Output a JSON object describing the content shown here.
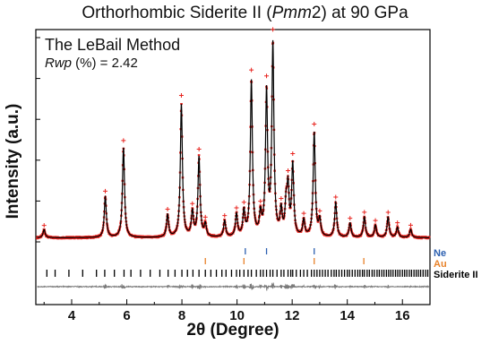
{
  "title_prefix": "Orthorhombic Siderite II (",
  "title_italic": "Pmm",
  "title_suffix": "2) at 90 GPa",
  "method_label": "The LeBail Method",
  "rwp_italic": "Rwp",
  "rwp_rest": " (%) = 2.42",
  "colors": {
    "observed": "#e8231e",
    "fit": "#000000",
    "difference": "#7a7a7a",
    "ne": "#2b5fb0",
    "au": "#e8822a",
    "siderite": "#000000"
  },
  "chart_data": {
    "type": "line",
    "xlabel": "2θ (Degree)",
    "ylabel": "Intensity (a.u.)",
    "xlim": [
      2.7,
      17.0
    ],
    "ylim": [
      0,
      100
    ],
    "xticks": [
      4,
      6,
      8,
      10,
      12,
      14,
      16
    ],
    "xtick_labels": [
      "4",
      "6",
      "8",
      "10",
      "12",
      "14",
      "16"
    ],
    "grid": false,
    "background_level": 2.0,
    "peaks": [
      {
        "x": 3.0,
        "height": 4.0
      },
      {
        "x": 5.22,
        "height": 20.0
      },
      {
        "x": 5.88,
        "height": 44.0
      },
      {
        "x": 7.48,
        "height": 11.0
      },
      {
        "x": 7.98,
        "height": 65.0
      },
      {
        "x": 8.38,
        "height": 12.0
      },
      {
        "x": 8.62,
        "height": 39.0
      },
      {
        "x": 8.85,
        "height": 6.0
      },
      {
        "x": 9.55,
        "height": 8.0
      },
      {
        "x": 9.98,
        "height": 11.0
      },
      {
        "x": 10.25,
        "height": 12.0
      },
      {
        "x": 10.52,
        "height": 76.0
      },
      {
        "x": 10.85,
        "height": 10.0
      },
      {
        "x": 11.07,
        "height": 70.0
      },
      {
        "x": 11.3,
        "height": 93.0
      },
      {
        "x": 11.6,
        "height": 12.0
      },
      {
        "x": 11.78,
        "height": 14.0
      },
      {
        "x": 11.85,
        "height": 22.0
      },
      {
        "x": 12.02,
        "height": 35.0
      },
      {
        "x": 12.42,
        "height": 8.0
      },
      {
        "x": 12.8,
        "height": 51.0
      },
      {
        "x": 13.0,
        "height": 8.0
      },
      {
        "x": 13.58,
        "height": 17.0
      },
      {
        "x": 14.1,
        "height": 7.0
      },
      {
        "x": 14.62,
        "height": 10.0
      },
      {
        "x": 15.02,
        "height": 6.0
      },
      {
        "x": 15.48,
        "height": 10.0
      },
      {
        "x": 15.82,
        "height": 5.0
      },
      {
        "x": 16.3,
        "height": 4.0
      }
    ],
    "peak_width": 0.045,
    "observed_marker_x": [
      3.0,
      5.22,
      5.88,
      7.48,
      7.98,
      8.38,
      8.62,
      8.85,
      9.55,
      9.98,
      10.25,
      10.52,
      10.85,
      11.07,
      11.3,
      11.6,
      11.85,
      12.02,
      12.42,
      12.8,
      13.0,
      13.58,
      14.1,
      14.62,
      15.02,
      15.48,
      15.82,
      16.3
    ],
    "reflections": {
      "Ne": [
        10.3,
        11.07,
        12.8
      ],
      "Au": [
        8.85,
        10.25,
        12.8,
        14.6
      ],
      "Siderite II": [
        3.1,
        3.4,
        3.9,
        4.4,
        4.9,
        5.2,
        5.55,
        5.9,
        6.15,
        6.5,
        6.85,
        7.2,
        7.5,
        7.75,
        8.0,
        8.2,
        8.4,
        8.62,
        8.85,
        9.05,
        9.25,
        9.45,
        9.6,
        9.8,
        9.98,
        10.1,
        10.25,
        10.4,
        10.52,
        10.7,
        10.85,
        10.95,
        11.07,
        11.2,
        11.3,
        11.45,
        11.6,
        11.7,
        11.85,
        11.95,
        12.02,
        12.15,
        12.3,
        12.42,
        12.55,
        12.7,
        12.8,
        12.9,
        13.0,
        13.1,
        13.2,
        13.3,
        13.42,
        13.52,
        13.6,
        13.7,
        13.8,
        13.9,
        14.0,
        14.08,
        14.18,
        14.28,
        14.38,
        14.46,
        14.55,
        14.62,
        14.72,
        14.8,
        14.9,
        14.98,
        15.08,
        15.16,
        15.25,
        15.33,
        15.42,
        15.5,
        15.58,
        15.66,
        15.75,
        15.83,
        15.91,
        16.0,
        16.08,
        16.16,
        16.25,
        16.33,
        16.42,
        16.5,
        16.58,
        16.66,
        16.75,
        16.84,
        16.92
      ]
    },
    "legend": [
      {
        "label": "Ne",
        "color_key": "ne"
      },
      {
        "label": "Au",
        "color_key": "au"
      },
      {
        "label": "Siderite II",
        "color_key": "siderite"
      }
    ]
  }
}
